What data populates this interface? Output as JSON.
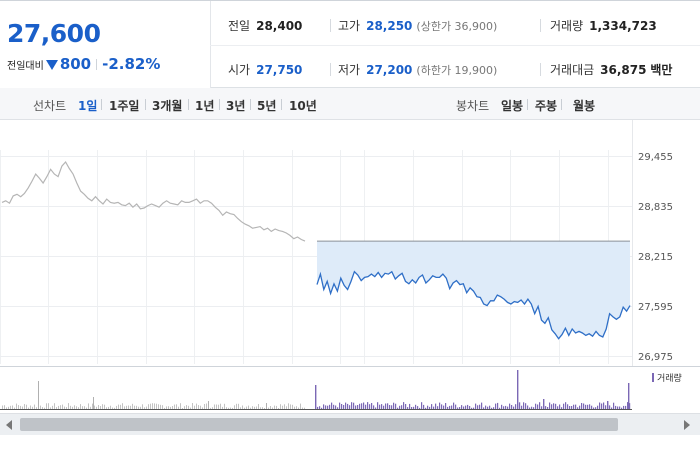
{
  "quote": {
    "price": "27,600",
    "change_label": "전일대비",
    "change_amount": "800",
    "change_pct": "-2.82%",
    "prev_close": {
      "label": "전일",
      "value": "28,400"
    },
    "high": {
      "label": "고가",
      "value": "28,250",
      "note": "(상한가 36,900)"
    },
    "volume": {
      "label": "거래량",
      "value": "1,334,723"
    },
    "open": {
      "label": "시가",
      "value": "27,750"
    },
    "low": {
      "label": "저가",
      "value": "27,200",
      "note": "(하한가 19,900)"
    },
    "trade_amount": {
      "label": "거래대금",
      "value": "36,875",
      "unit": "백만"
    }
  },
  "toolbar": {
    "line_chart_label": "선차트",
    "periods": [
      "1일",
      "1주일",
      "3개월",
      "1년",
      "3년",
      "5년",
      "10년"
    ],
    "selected_period": "1일",
    "candle_chart_label": "봉차트",
    "candle_options": [
      "일봉",
      "주봉",
      "월봉"
    ]
  },
  "colors": {
    "accent": "#1a5fc9",
    "today_line": "#2f6fc7",
    "today_fill": "#deebf9",
    "prev_line": "#b5b5b5",
    "volume_bar": "#7b68b5"
  },
  "chart_data": {
    "type": "line",
    "y_axis": {
      "ticks": [
        29455,
        28835,
        28215,
        27595,
        26975
      ],
      "ylim": [
        26975,
        29455
      ],
      "position": "right"
    },
    "grid": true,
    "reference_line": {
      "value": 28400
    },
    "volume_legend": "거래량",
    "series": [
      {
        "values": [
          28880,
          28900,
          28870,
          28960,
          28980,
          28950,
          28990,
          29060,
          29140,
          29230,
          29180,
          29120,
          29200,
          29290,
          29230,
          29200,
          29330,
          29380,
          29300,
          29230,
          29120,
          29020,
          28980,
          28930,
          28900,
          28950,
          28900,
          28860,
          28920,
          28880,
          28870,
          28880,
          28850,
          28840,
          28870,
          28820,
          28860,
          28800,
          28810,
          28840,
          28860,
          28840,
          28820,
          28870,
          28900,
          28870,
          28860,
          28850,
          28900,
          28880,
          28880,
          28900,
          28920,
          28870,
          28900,
          28900,
          28870,
          28820,
          28780,
          28720,
          28760,
          28740,
          28730,
          28680,
          28640,
          28610,
          28590,
          28560,
          28570,
          28580,
          28540,
          28560,
          28520,
          28550,
          28530,
          28520,
          28500,
          28470,
          28430,
          28450,
          28420,
          28400
        ]
      },
      {
        "values": [
          27860,
          27990,
          27800,
          27900,
          27750,
          27870,
          27780,
          27940,
          27850,
          27800,
          27900,
          28020,
          27980,
          27910,
          27950,
          27960,
          27990,
          27960,
          28010,
          27950,
          28000,
          27990,
          28020,
          27930,
          27970,
          28000,
          27900,
          27870,
          27920,
          27880,
          27950,
          27980,
          27880,
          27920,
          27970,
          27950,
          27950,
          27990,
          27940,
          27810,
          27880,
          27910,
          27860,
          27870,
          27760,
          27820,
          27780,
          27710,
          27700,
          27620,
          27600,
          27660,
          27660,
          27730,
          27710,
          27680,
          27640,
          27620,
          27650,
          27640,
          27670,
          27620,
          27680,
          27620,
          27500,
          27590,
          27420,
          27380,
          27450,
          27300,
          27250,
          27190,
          27240,
          27320,
          27230,
          27310,
          27260,
          27280,
          27260,
          27230,
          27250,
          27220,
          27280,
          27230,
          27210,
          27310,
          27500,
          27460,
          27430,
          27460,
          27580,
          27530,
          27600
        ]
      }
    ]
  }
}
